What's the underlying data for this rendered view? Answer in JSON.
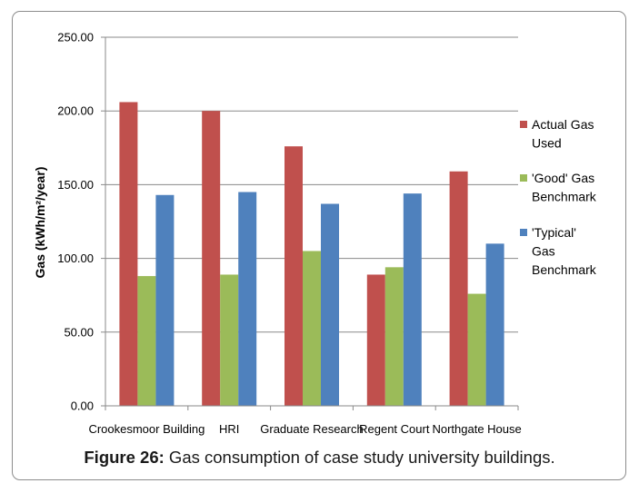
{
  "chart_data": {
    "type": "bar",
    "title": "",
    "xlabel": "",
    "ylabel": "Gas (kWh/m²/year)",
    "ylim": [
      0,
      250
    ],
    "yticks": [
      0,
      50,
      100,
      150,
      200,
      250
    ],
    "ytick_labels": [
      "0.00",
      "50.00",
      "100.00",
      "150.00",
      "200.00",
      "250.00"
    ],
    "categories": [
      "Crookesmoor Building",
      "HRI",
      "Graduate Research",
      "Regent Court",
      "Northgate House"
    ],
    "series": [
      {
        "name": "Actual Gas Used",
        "color": "#c0504d",
        "values": [
          206,
          200,
          176,
          89,
          159
        ]
      },
      {
        "name": "'Good' Gas Benchmark",
        "color": "#9bbb59",
        "values": [
          88,
          89,
          105,
          94,
          76
        ]
      },
      {
        "name": "'Typical' Gas Benchmark",
        "color": "#4f81bd",
        "values": [
          143,
          145,
          137,
          144,
          110
        ]
      }
    ],
    "legend_lines": [
      [
        "Actual Gas",
        "Used"
      ],
      [
        "'Good' Gas",
        "Benchmark"
      ],
      [
        "'Typical'",
        "Gas",
        "Benchmark"
      ]
    ],
    "grid": true,
    "legend_position": "right"
  },
  "caption": {
    "label": "Figure 26:",
    "text": " Gas consumption of case study university buildings."
  }
}
